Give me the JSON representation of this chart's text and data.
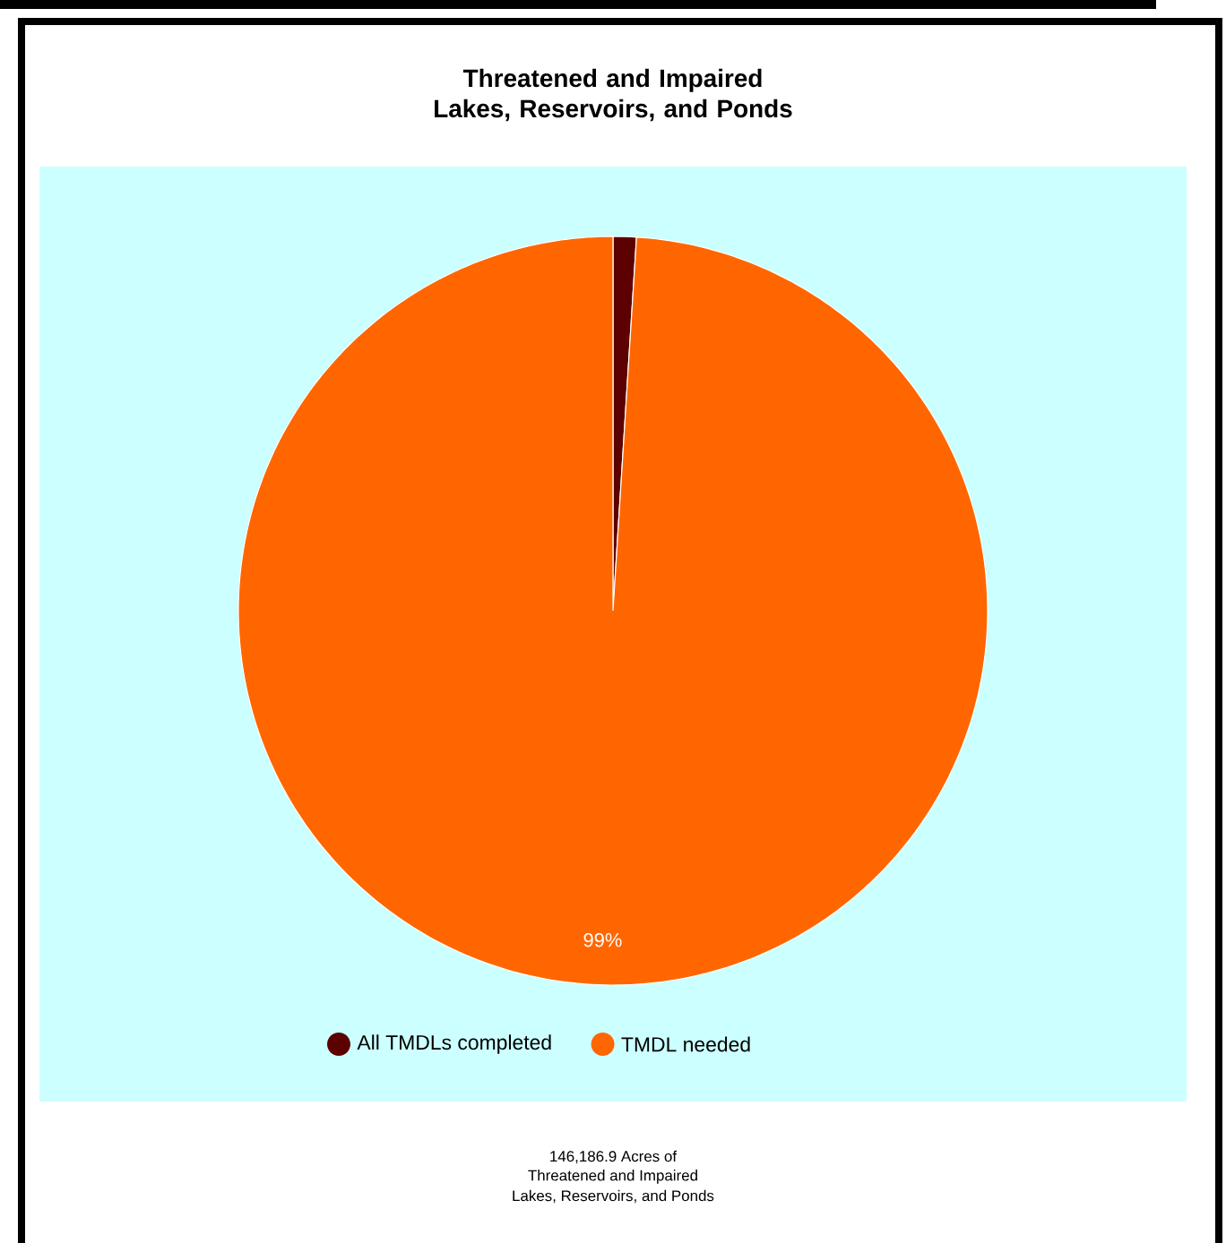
{
  "chart_data": {
    "type": "pie",
    "title": "Threatened and Impaired Lakes, Reservoirs, and Ponds",
    "categories": [
      "All TMDLs completed",
      "TMDL needed"
    ],
    "values": [
      1,
      99
    ],
    "colors": [
      "#5c0000",
      "#ff6600"
    ],
    "value_labels": [
      null,
      "99%"
    ],
    "legend": "bottom",
    "annotations": [
      "146,186.9 Acres of",
      "Threatened and Impaired",
      "Lakes, Reservoirs, and Ponds"
    ]
  }
}
